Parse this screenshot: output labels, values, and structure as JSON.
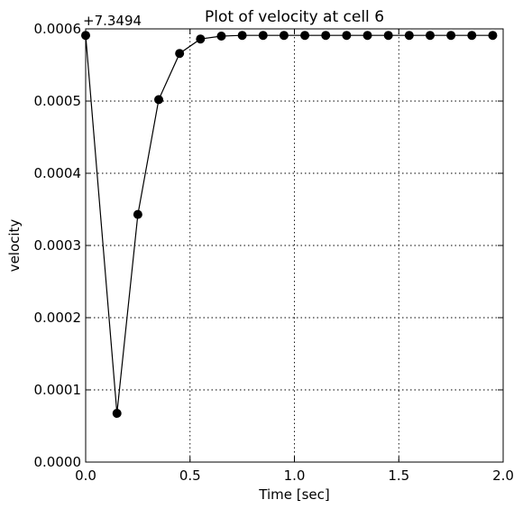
{
  "chart_data": {
    "type": "line",
    "title": "Plot of velocity at cell 6",
    "xlabel": "Time [sec]",
    "ylabel": "velocity",
    "offset_label": "+7.3494",
    "xlim": [
      0.0,
      2.0
    ],
    "ylim": [
      0.0,
      0.0006
    ],
    "xticks": [
      "0.0",
      "0.5",
      "1.0",
      "1.5",
      "2.0"
    ],
    "yticks": [
      "0.0000",
      "0.0001",
      "0.0002",
      "0.0003",
      "0.0004",
      "0.0005",
      "0.0006"
    ],
    "grid": true,
    "line_color": "#000000",
    "marker": "circle",
    "series": [
      {
        "x": [
          0.0,
          0.15,
          0.25,
          0.35,
          0.45,
          0.55,
          0.65,
          0.75,
          0.85,
          0.95,
          1.05,
          1.15,
          1.25,
          1.35,
          1.45,
          1.55,
          1.65,
          1.75,
          1.85,
          1.95
        ],
        "values": [
          0.000591,
          6.75e-05,
          0.000343,
          0.000502,
          0.000566,
          0.000586,
          0.00059,
          0.000591,
          0.000591,
          0.000591,
          0.000591,
          0.000591,
          0.000591,
          0.000591,
          0.000591,
          0.000591,
          0.000591,
          0.000591,
          0.000591,
          0.000591
        ]
      }
    ]
  }
}
